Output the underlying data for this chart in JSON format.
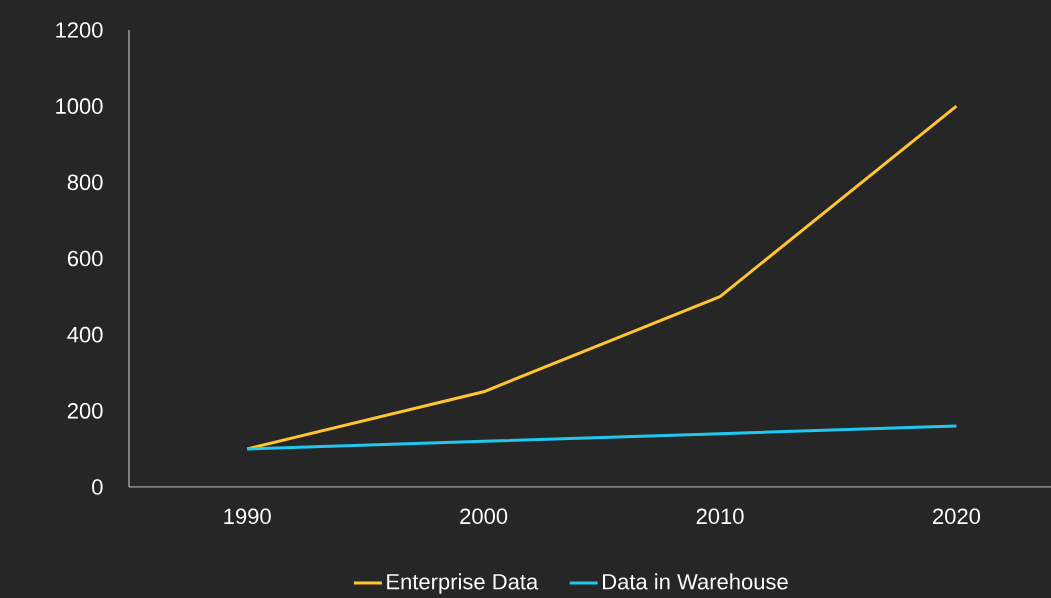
{
  "chart_data": {
    "type": "line",
    "categories": [
      "1990",
      "2000",
      "2010",
      "2020"
    ],
    "series": [
      {
        "name": "Enterprise Data",
        "color": "#ffc632",
        "values": [
          100,
          250,
          500,
          1000
        ]
      },
      {
        "name": "Data in Warehouse",
        "color": "#20c8f0",
        "values": [
          100,
          120,
          140,
          160
        ]
      }
    ],
    "ylim": [
      0,
      1200
    ],
    "yticks": [
      0,
      200,
      400,
      600,
      800,
      1000,
      1200
    ],
    "legend": "bottom",
    "marker": "none",
    "line_style": "solid"
  }
}
